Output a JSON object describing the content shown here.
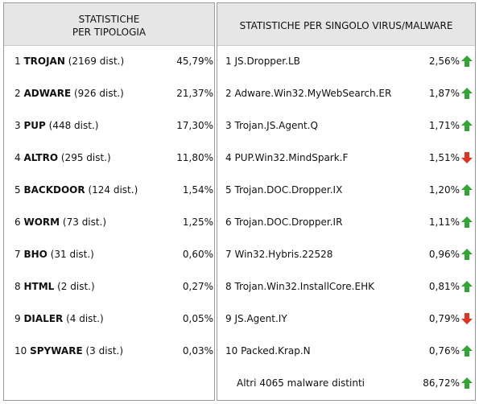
{
  "left": {
    "header": [
      "STATISTICHE",
      "PER TIPOLOGIA"
    ],
    "rows": [
      {
        "rank": "1",
        "name": "TROJAN",
        "dist": "(2169 dist.)",
        "percent": "45,79%"
      },
      {
        "rank": "2",
        "name": "ADWARE",
        "dist": "(926 dist.)",
        "percent": "21,37%"
      },
      {
        "rank": "3",
        "name": "PUP",
        "dist": "(448 dist.)",
        "percent": "17,30%"
      },
      {
        "rank": "4",
        "name": "ALTRO",
        "dist": "(295 dist.)",
        "percent": "11,80%"
      },
      {
        "rank": "5",
        "name": "BACKDOOR",
        "dist": "(124 dist.)",
        "percent": "1,54%"
      },
      {
        "rank": "6",
        "name": "WORM",
        "dist": "(73 dist.)",
        "percent": "1,25%"
      },
      {
        "rank": "7",
        "name": "BHO",
        "dist": "(31 dist.)",
        "percent": "0,60%"
      },
      {
        "rank": "8",
        "name": "HTML",
        "dist": "(2 dist.)",
        "percent": "0,27%"
      },
      {
        "rank": "9",
        "name": "DIALER",
        "dist": "(4 dist.)",
        "percent": "0,05%"
      },
      {
        "rank": "10",
        "name": "SPYWARE",
        "dist": "(3 dist.)",
        "percent": "0,03%"
      }
    ]
  },
  "right": {
    "header": "STATISTICHE PER SINGOLO VIRUS/MALWARE",
    "rows": [
      {
        "rank": "1",
        "name": "JS.Dropper.LB",
        "percent": "2,56%",
        "trend": "up"
      },
      {
        "rank": "2",
        "name": "Adware.Win32.MyWebSearch.ER",
        "percent": "1,87%",
        "trend": "up"
      },
      {
        "rank": "3",
        "name": "Trojan.JS.Agent.Q",
        "percent": "1,71%",
        "trend": "up"
      },
      {
        "rank": "4",
        "name": "PUP.Win32.MindSpark.F",
        "percent": "1,51%",
        "trend": "down"
      },
      {
        "rank": "5",
        "name": "Trojan.DOC.Dropper.IX",
        "percent": "1,20%",
        "trend": "up"
      },
      {
        "rank": "6",
        "name": "Trojan.DOC.Dropper.IR",
        "percent": "1,11%",
        "trend": "up"
      },
      {
        "rank": "7",
        "name": "Win32.Hybris.22528",
        "percent": "0,96%",
        "trend": "up"
      },
      {
        "rank": "8",
        "name": "Trojan.Win32.InstallCore.EHK",
        "percent": "0,81%",
        "trend": "up"
      },
      {
        "rank": "9",
        "name": "JS.Agent.IY",
        "percent": "0,79%",
        "trend": "down"
      },
      {
        "rank": "10",
        "name": "Packed.Krap.N",
        "percent": "0,76%",
        "trend": "up"
      }
    ],
    "total": {
      "name": "Altri 4065 malware distinti",
      "percent": "86,72%",
      "trend": "up"
    }
  }
}
